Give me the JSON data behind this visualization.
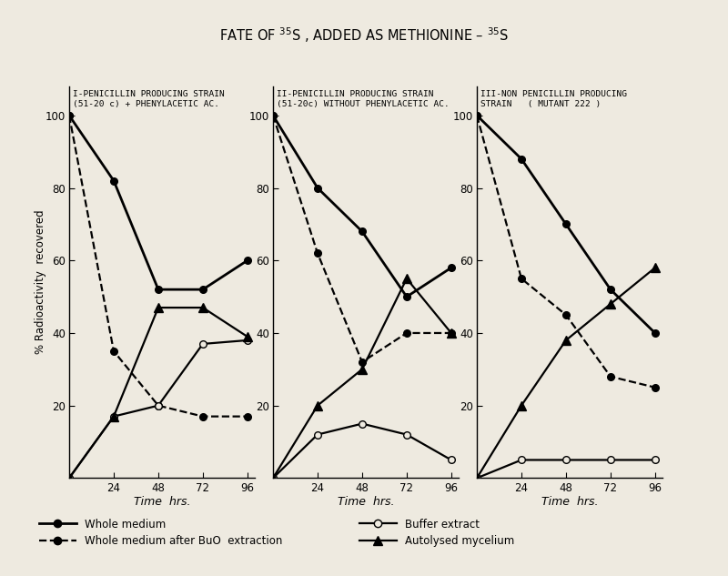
{
  "title": "FATE OF $^{35}$S , ADDED AS METHIONINE – $^{35}$S",
  "background_color": "#eeeae0",
  "time_points": [
    0,
    24,
    48,
    72,
    96
  ],
  "panels": [
    {
      "subtitle_line1": "I-PENICILLIN PRODUCING STRAIN",
      "subtitle_line2": "(51-20 c) + PHENYLACETIC AC.",
      "whole_medium": [
        100,
        82,
        52,
        52,
        60
      ],
      "whole_medium_buO": [
        100,
        35,
        20,
        17,
        17
      ],
      "buffer_extract": [
        0,
        17,
        20,
        37,
        38
      ],
      "autolysed_mycelium": [
        0,
        17,
        47,
        47,
        39
      ]
    },
    {
      "subtitle_line1": "II-PENICILLIN PRODUCING STRAIN",
      "subtitle_line2": "(51-20c) WITHOUT PHENYLACETIC AC.",
      "whole_medium": [
        100,
        80,
        68,
        50,
        58
      ],
      "whole_medium_buO": [
        100,
        62,
        32,
        40,
        40
      ],
      "buffer_extract": [
        0,
        12,
        15,
        12,
        5
      ],
      "autolysed_mycelium": [
        0,
        20,
        30,
        55,
        40
      ]
    },
    {
      "subtitle_line1": "III-NON PENICILLIN PRODUCING",
      "subtitle_line2": "STRAIN   ( MUTANT 222 )",
      "whole_medium": [
        100,
        88,
        70,
        52,
        40
      ],
      "whole_medium_buO": [
        100,
        55,
        45,
        28,
        25
      ],
      "buffer_extract": [
        0,
        5,
        5,
        5,
        5
      ],
      "autolysed_mycelium": [
        0,
        20,
        38,
        48,
        58
      ]
    }
  ],
  "ylabel": "% Radioactivity  recovered",
  "xlabel": "Time  hrs.",
  "yticks": [
    20,
    40,
    60,
    80,
    100
  ],
  "xticks": [
    24,
    48,
    72,
    96
  ]
}
